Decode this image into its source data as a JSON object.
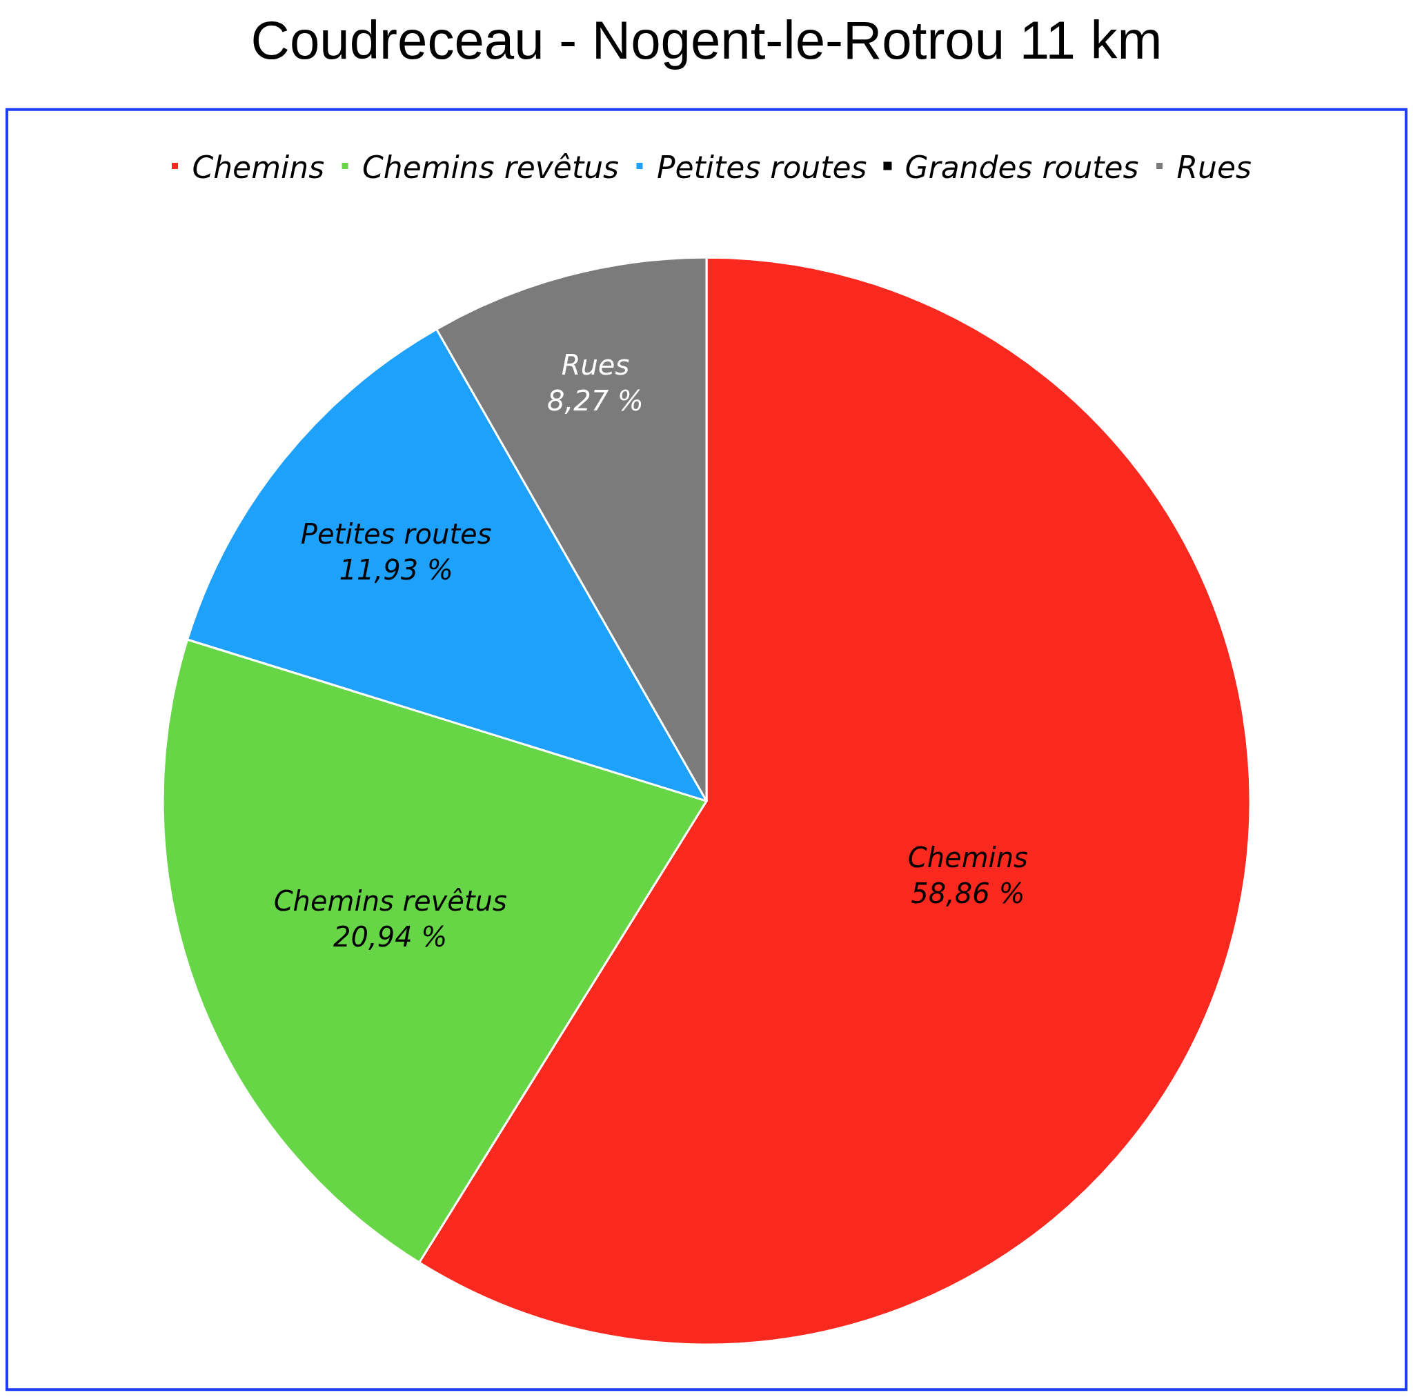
{
  "chart_data": {
    "type": "pie",
    "title": "Coudreceau - Nogent-le-Rotrou 11 km",
    "categories": [
      "Chemins",
      "Chemins revêtus",
      "Petites routes",
      "Grandes routes",
      "Rues"
    ],
    "values": [
      58.86,
      20.94,
      11.93,
      0,
      8.27
    ],
    "colors": [
      "#f9291f",
      "#66d646",
      "#1ea1fb",
      "#000000",
      "#7b7b7b"
    ],
    "value_labels": [
      "58,86 %",
      "20,94 %",
      "11,93 %",
      null,
      "8,27 %"
    ],
    "legend": "top"
  }
}
